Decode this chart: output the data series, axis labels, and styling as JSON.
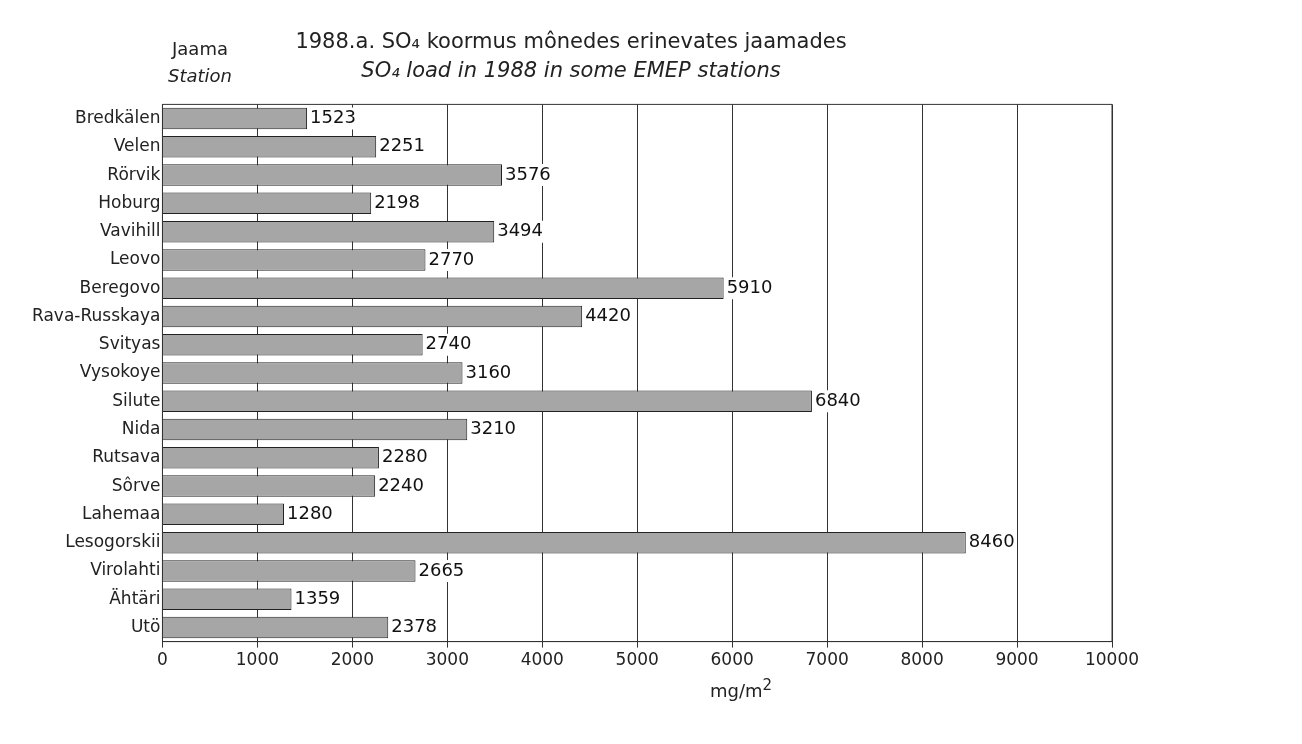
{
  "chart_data": {
    "type": "bar",
    "orientation": "horizontal",
    "title": "1988.a. SO₄ koormus mônedes erinevates jaamades",
    "subtitle": "SO₄ load in 1988 in some EMEP stations",
    "xlabel": "mg/m$^{2}$",
    "annotations": [
      "Jaama",
      "Station"
    ],
    "categories": [
      "Bredkälen",
      "Velen",
      "Rörvik",
      "Hoburg",
      "Vavihill",
      "Leovo",
      "Beregovo",
      "Rava-Russkaya",
      "Svityas",
      "Vysokoye",
      "Silute",
      "Nida",
      "Rutsava",
      "Sôrve",
      "Lahemaa",
      "Lesogorskii",
      "Virolahti",
      "Ähtäri",
      "Utö"
    ],
    "values": [
      1523,
      2251,
      3576,
      2198,
      3494,
      2770,
      5910,
      4420,
      2740,
      3160,
      6840,
      3210,
      2280,
      2240,
      1280,
      8460,
      2665,
      1359,
      2378
    ],
    "color": "#a6a6a6",
    "xlim": [
      0,
      10000
    ],
    "xticks": [
      0,
      1000,
      2000,
      3000,
      4000,
      5000,
      6000,
      7000,
      8000,
      9000,
      10000
    ],
    "grid": "x",
    "data_labels": true,
    "legend": false
  }
}
